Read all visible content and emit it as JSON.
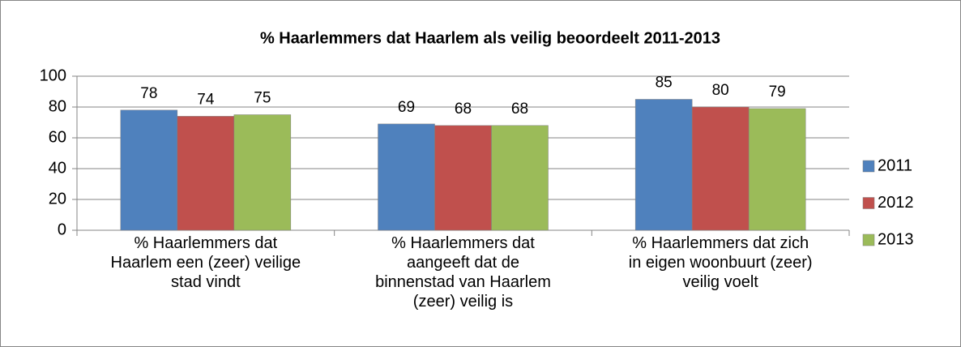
{
  "chart_data": {
    "type": "bar",
    "title": "% Haarlemmers dat Haarlem als veilig beoordeelt 2011-2013",
    "categories": [
      "% Haarlemmers dat\nHaarlem een (zeer) veilige\nstad vindt",
      "% Haarlemmers dat\naangeeft dat de\nbinnenstad van Haarlem\n(zeer) veilig is",
      "% Haarlemmers dat zich\nin eigen woonbuurt (zeer)\nveilig voelt"
    ],
    "series": [
      {
        "name": "2011",
        "color": "#4f81bd",
        "values": [
          78,
          69,
          85
        ]
      },
      {
        "name": "2012",
        "color": "#c0504d",
        "values": [
          74,
          68,
          80
        ]
      },
      {
        "name": "2013",
        "color": "#9bbb59",
        "values": [
          75,
          68,
          79
        ]
      }
    ],
    "ylim": [
      0,
      100
    ],
    "yticks": [
      0,
      20,
      40,
      60,
      80,
      100
    ],
    "grid": true,
    "legend": "right"
  }
}
